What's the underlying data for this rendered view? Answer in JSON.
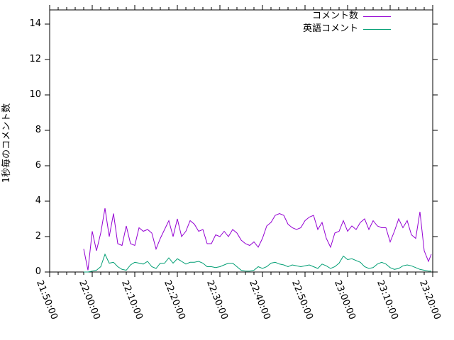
{
  "colors": {
    "background": "#ffffff",
    "foreground": "#000000",
    "series1": "#9400d3",
    "series2": "#009e73"
  },
  "chart_data": {
    "type": "line",
    "title": "",
    "xlabel": "",
    "ylabel": "1秒毎のコメント数",
    "grid": false,
    "legend_position": "top-right-inside",
    "ylim": [
      0,
      14.8
    ],
    "y_ticks": [
      0,
      2,
      4,
      6,
      8,
      10,
      12,
      14
    ],
    "x_range_seconds": [
      0,
      5400
    ],
    "x_major_every_seconds": 600,
    "x_minor_every_seconds": 120,
    "x_tick_labels": [
      "21:50:00",
      "22:00:00",
      "22:10:00",
      "22:20:00",
      "22:30:00",
      "22:40:00",
      "22:50:00",
      "23:00:00",
      "23:10:00",
      "23:20:00"
    ],
    "x_times": [
      "21:58:00",
      "21:59:00",
      "22:00:00",
      "22:01:00",
      "22:02:00",
      "22:03:00",
      "22:04:00",
      "22:05:00",
      "22:06:00",
      "22:07:00",
      "22:08:00",
      "22:09:00",
      "22:10:00",
      "22:11:00",
      "22:12:00",
      "22:13:00",
      "22:14:00",
      "22:15:00",
      "22:16:00",
      "22:17:00",
      "22:18:00",
      "22:19:00",
      "22:20:00",
      "22:21:00",
      "22:22:00",
      "22:23:00",
      "22:24:00",
      "22:25:00",
      "22:26:00",
      "22:27:00",
      "22:28:00",
      "22:29:00",
      "22:30:00",
      "22:31:00",
      "22:32:00",
      "22:33:00",
      "22:34:00",
      "22:35:00",
      "22:36:00",
      "22:37:00",
      "22:38:00",
      "22:39:00",
      "22:40:00",
      "22:41:00",
      "22:42:00",
      "22:43:00",
      "22:44:00",
      "22:45:00",
      "22:46:00",
      "22:47:00",
      "22:48:00",
      "22:49:00",
      "22:50:00",
      "22:51:00",
      "22:52:00",
      "22:53:00",
      "22:54:00",
      "22:55:00",
      "22:56:00",
      "22:57:00",
      "22:58:00",
      "22:59:00",
      "23:00:00",
      "23:01:00",
      "23:02:00",
      "23:03:00",
      "23:04:00",
      "23:05:00",
      "23:06:00",
      "23:07:00",
      "23:08:00",
      "23:09:00",
      "23:10:00",
      "23:11:00",
      "23:12:00",
      "23:13:00",
      "23:14:00",
      "23:15:00",
      "23:16:00",
      "23:17:00",
      "23:18:00",
      "23:19:00",
      "23:19:40"
    ],
    "series": [
      {
        "name": "コメント数",
        "color": "#9400d3",
        "values": [
          1.3,
          0.1,
          2.3,
          1.2,
          2.2,
          3.6,
          2.0,
          3.3,
          1.6,
          1.5,
          2.6,
          1.6,
          1.5,
          2.5,
          2.3,
          2.4,
          2.2,
          1.3,
          1.9,
          2.4,
          2.9,
          2.0,
          3.0,
          2.0,
          2.3,
          2.9,
          2.7,
          2.3,
          2.4,
          1.6,
          1.6,
          2.1,
          2.0,
          2.3,
          2.0,
          2.4,
          2.2,
          1.8,
          1.6,
          1.5,
          1.7,
          1.4,
          1.9,
          2.6,
          2.8,
          3.2,
          3.3,
          3.2,
          2.7,
          2.5,
          2.4,
          2.5,
          2.9,
          3.1,
          3.2,
          2.4,
          2.8,
          1.9,
          1.4,
          2.2,
          2.3,
          2.9,
          2.3,
          2.6,
          2.4,
          2.8,
          3.0,
          2.4,
          2.9,
          2.6,
          2.5,
          2.5,
          1.7,
          2.3,
          3.0,
          2.5,
          2.9,
          2.1,
          1.9,
          3.4,
          1.2,
          0.6,
          1.0
        ]
      },
      {
        "name": "英語コメント",
        "color": "#009e73",
        "values": [
          0.0,
          0.0,
          0.05,
          0.1,
          0.3,
          1.0,
          0.5,
          0.55,
          0.3,
          0.15,
          0.1,
          0.4,
          0.55,
          0.5,
          0.45,
          0.6,
          0.3,
          0.2,
          0.5,
          0.5,
          0.8,
          0.5,
          0.75,
          0.6,
          0.45,
          0.55,
          0.55,
          0.6,
          0.5,
          0.3,
          0.3,
          0.25,
          0.3,
          0.4,
          0.5,
          0.5,
          0.3,
          0.1,
          0.05,
          0.05,
          0.1,
          0.3,
          0.2,
          0.3,
          0.5,
          0.55,
          0.45,
          0.4,
          0.3,
          0.4,
          0.35,
          0.3,
          0.35,
          0.4,
          0.3,
          0.2,
          0.45,
          0.35,
          0.2,
          0.3,
          0.5,
          0.9,
          0.7,
          0.75,
          0.65,
          0.55,
          0.3,
          0.2,
          0.25,
          0.45,
          0.55,
          0.45,
          0.25,
          0.15,
          0.2,
          0.35,
          0.4,
          0.35,
          0.25,
          0.15,
          0.1,
          0.05,
          0.05
        ]
      }
    ]
  }
}
